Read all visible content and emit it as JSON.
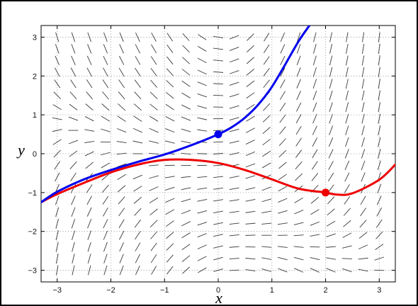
{
  "chart_data": {
    "type": "line",
    "title": "",
    "xlabel": "x",
    "ylabel": "y",
    "xlim": [
      -3.3,
      3.3
    ],
    "ylim": [
      -3.3,
      3.3
    ],
    "x_ticks": [
      -3,
      -2,
      -1,
      0,
      1,
      2,
      3
    ],
    "y_ticks": [
      -3,
      -2,
      -1,
      0,
      1,
      2,
      3
    ],
    "x_tick_labels": [
      "−3",
      "−2",
      "−1",
      "0",
      "1",
      "2",
      "3"
    ],
    "y_tick_labels": [
      "−3",
      "−2",
      "−1",
      "0",
      "1",
      "2",
      "3"
    ],
    "grid": true,
    "grid_style": "dotted",
    "slope_field": {
      "x_range": [
        -3,
        3
      ],
      "y_range": [
        -3,
        3
      ],
      "spacing": 0.3
    },
    "series": [
      {
        "color": "#0000ee",
        "initial_point": [
          0,
          0.5
        ],
        "x": [
          -3.3,
          -3.0,
          -2.5,
          -2.0,
          -1.5,
          -1.0,
          -0.5,
          0.0,
          0.25,
          0.5,
          0.75,
          1.0,
          1.25,
          1.5,
          1.7
        ],
        "y": [
          -1.25,
          -0.98,
          -0.66,
          -0.42,
          -0.21,
          -0.02,
          0.22,
          0.5,
          0.68,
          0.93,
          1.27,
          1.72,
          2.3,
          2.9,
          3.3
        ]
      },
      {
        "color": "#ee0000",
        "initial_point": [
          2,
          -1.0
        ],
        "x": [
          -3.3,
          -3.0,
          -2.5,
          -2.0,
          -1.5,
          -1.0,
          -0.5,
          0.0,
          0.5,
          1.0,
          1.5,
          2.0,
          2.2,
          2.5,
          3.0,
          3.3
        ],
        "y": [
          -1.25,
          -1.04,
          -0.75,
          -0.48,
          -0.28,
          -0.16,
          -0.16,
          -0.24,
          -0.42,
          -0.66,
          -0.9,
          -1.0,
          -1.05,
          -1.02,
          -0.67,
          -0.28
        ]
      }
    ]
  }
}
